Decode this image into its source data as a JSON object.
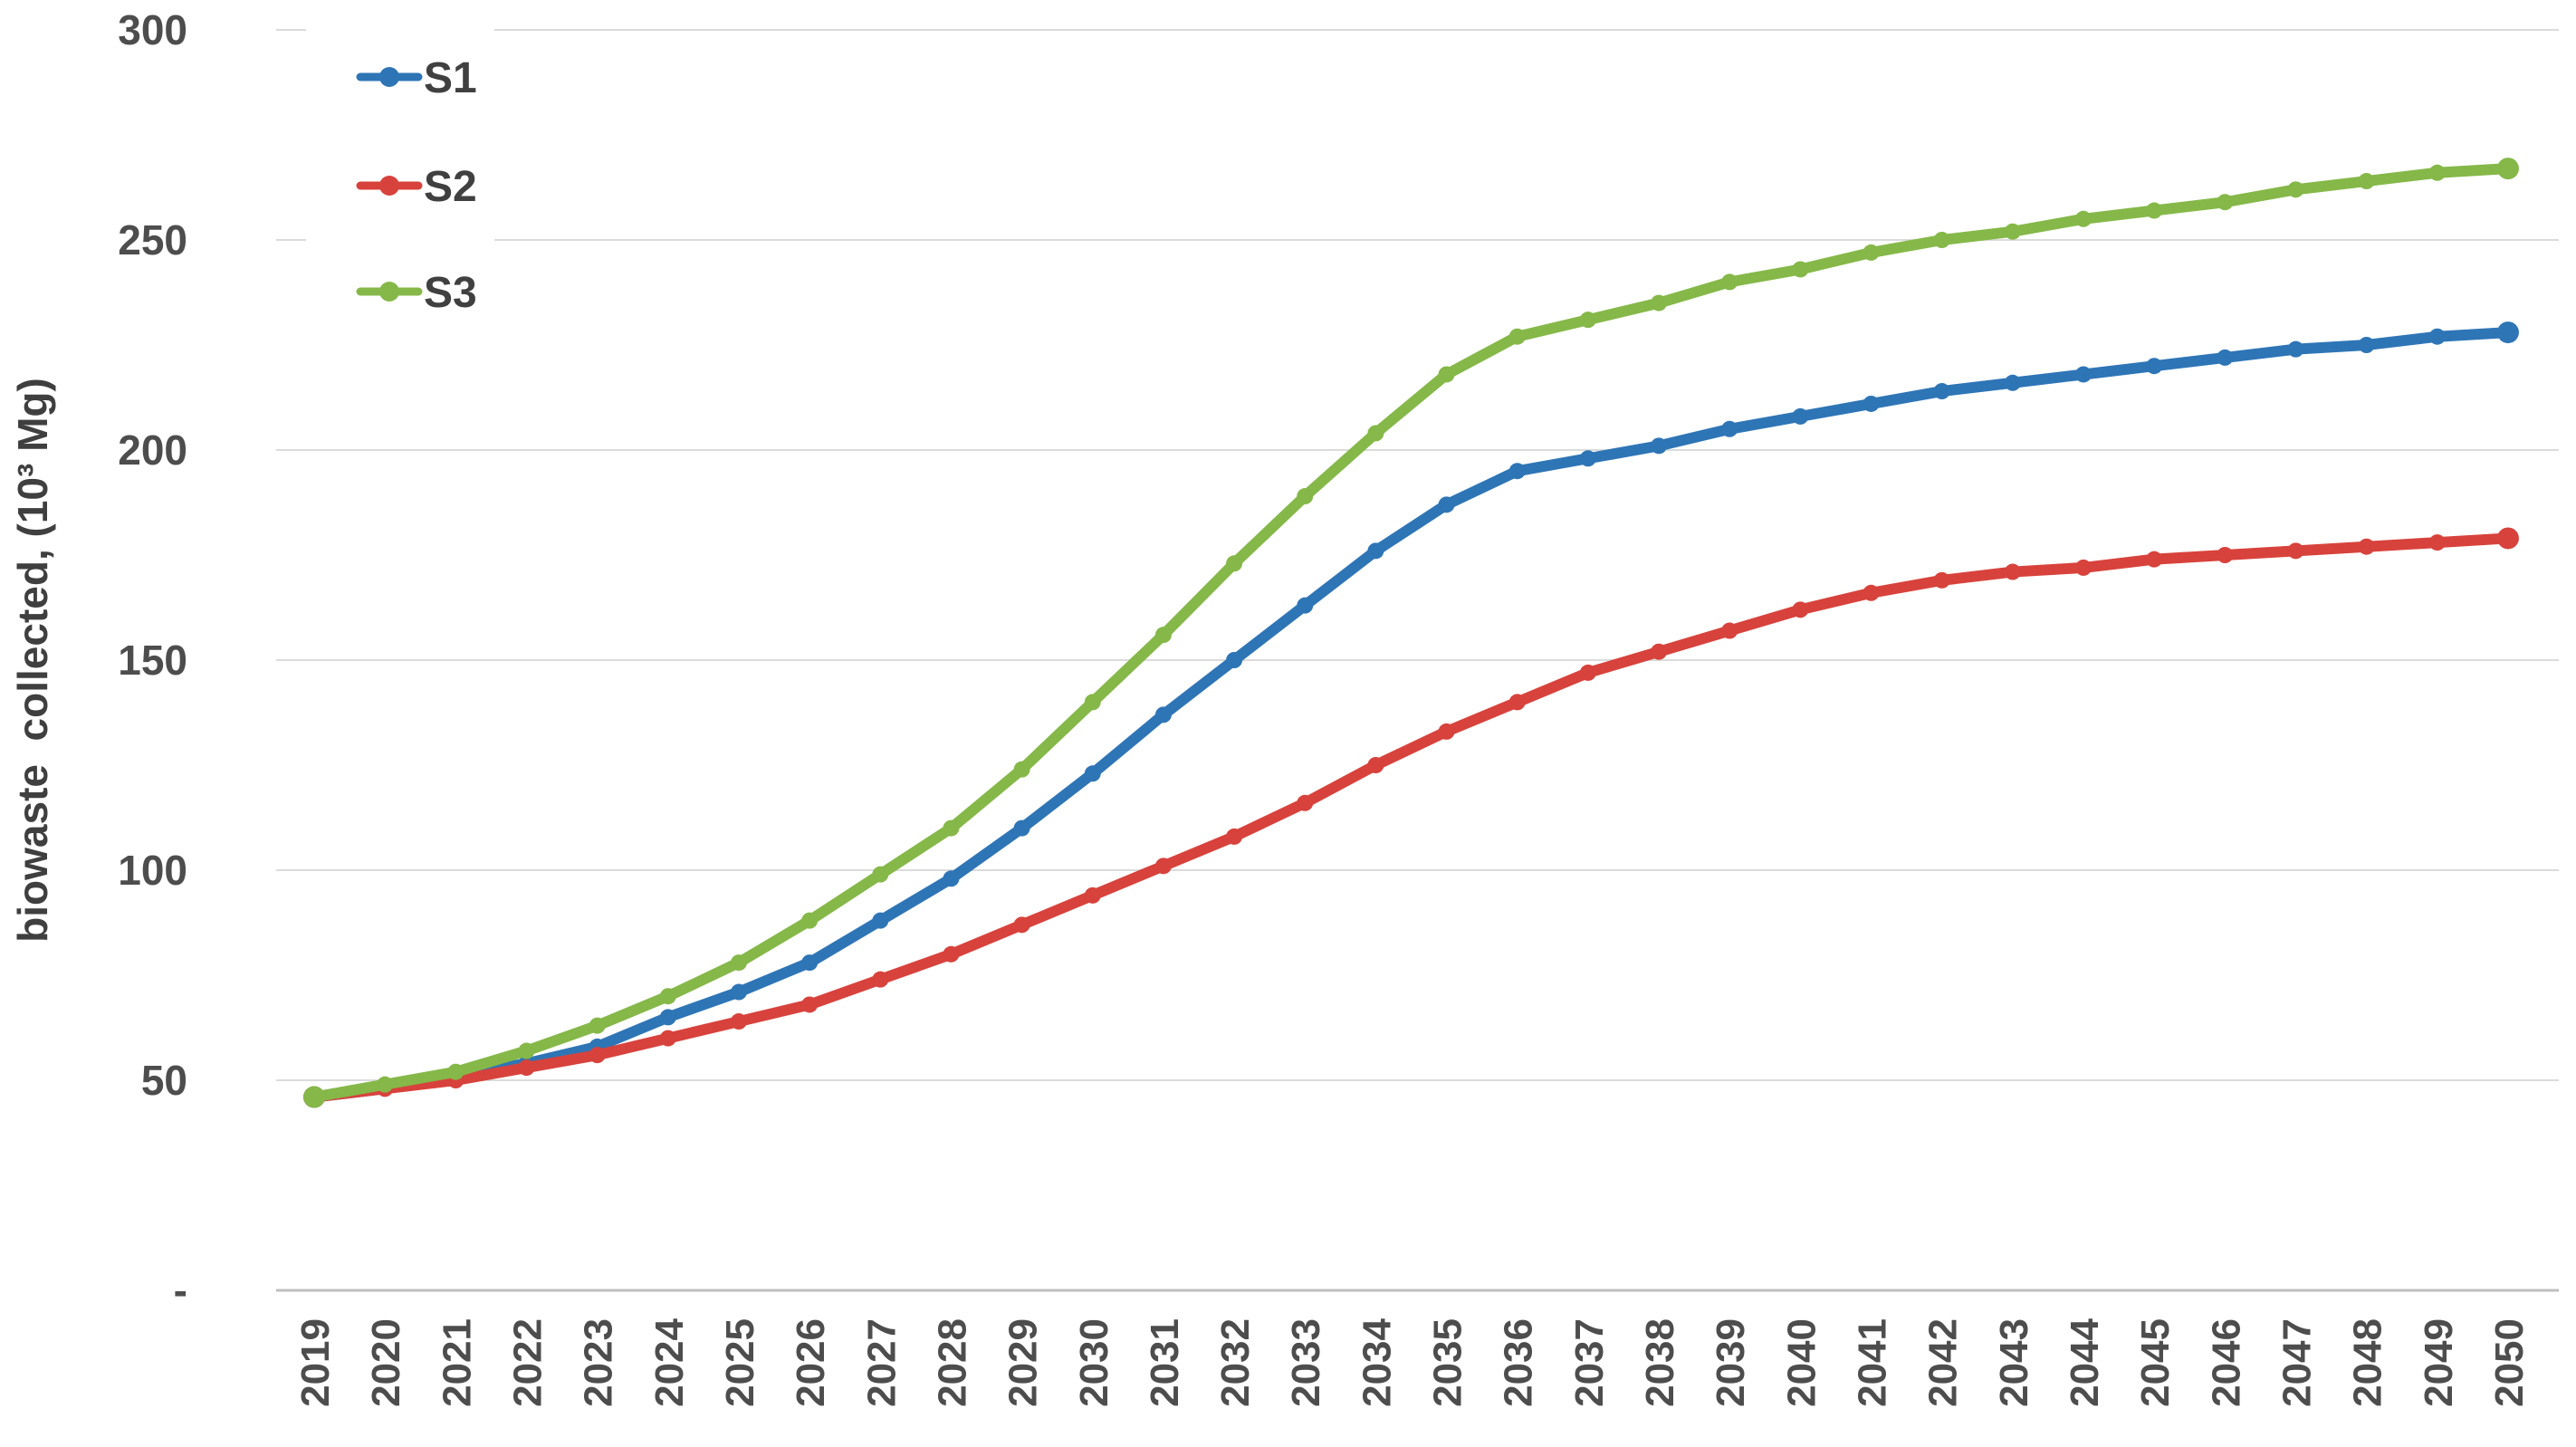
{
  "chart_data": {
    "type": "line",
    "title": "",
    "xlabel": "",
    "ylabel": "biowaste  collected, (10³ Mg)",
    "x": [
      2019,
      2020,
      2021,
      2022,
      2023,
      2024,
      2025,
      2026,
      2027,
      2028,
      2029,
      2030,
      2031,
      2032,
      2033,
      2034,
      2035,
      2036,
      2037,
      2038,
      2039,
      2040,
      2041,
      2042,
      2043,
      2044,
      2045,
      2046,
      2047,
      2048,
      2049,
      2050
    ],
    "series": [
      {
        "name": "S1",
        "color": "#2E75B6",
        "values": [
          46,
          48,
          51,
          54,
          58,
          65,
          71,
          78,
          88,
          98,
          110,
          123,
          137,
          150,
          163,
          176,
          187,
          195,
          198,
          201,
          205,
          208,
          211,
          214,
          216,
          218,
          220,
          222,
          224,
          225,
          227,
          228
        ]
      },
      {
        "name": "S2",
        "color": "#D8423C",
        "values": [
          46,
          48,
          50,
          53,
          56,
          60,
          64,
          68,
          74,
          80,
          87,
          94,
          101,
          108,
          116,
          125,
          133,
          140,
          147,
          152,
          157,
          162,
          166,
          169,
          171,
          172,
          174,
          175,
          176,
          177,
          178,
          179
        ]
      },
      {
        "name": "S3",
        "color": "#85B848",
        "values": [
          46,
          49,
          52,
          57,
          63,
          70,
          78,
          88,
          99,
          110,
          124,
          140,
          156,
          173,
          189,
          204,
          218,
          227,
          231,
          235,
          240,
          243,
          247,
          250,
          252,
          255,
          257,
          259,
          262,
          264,
          266,
          267
        ]
      }
    ],
    "y_ticks": [
      {
        "value": 300,
        "label": "300"
      },
      {
        "value": 250,
        "label": "250"
      },
      {
        "value": 200,
        "label": "200"
      },
      {
        "value": 150,
        "label": "150"
      },
      {
        "value": 100,
        "label": "100"
      },
      {
        "value": 50,
        "label": "50"
      },
      {
        "value": 0,
        "label": "-"
      }
    ],
    "ylim": [
      0,
      300
    ],
    "grid": true,
    "legend_position": "top-left-inside",
    "style": {
      "gridline_color": "#DBDBDB",
      "axis_line_color": "#BFBFBF",
      "tick_text_color": "#4d4d4d",
      "legend_text_color": "#404040",
      "background": "#ffffff"
    }
  }
}
